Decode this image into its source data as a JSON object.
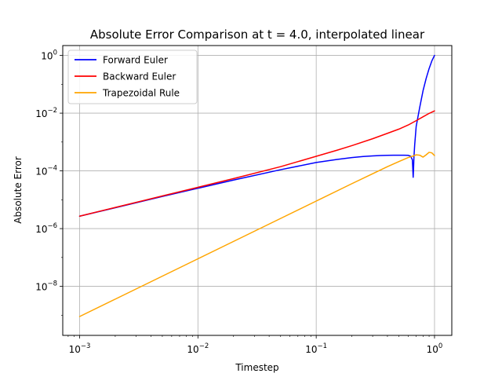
{
  "chart_data": {
    "type": "line",
    "title": "Absolute Error Comparison at t = 4.0, interpolated linear",
    "xlabel": "Timestep",
    "ylabel": "Absolute Error",
    "xscale": "log",
    "yscale": "log",
    "xlim": [
      0.00072,
      1.4
    ],
    "ylim": [
      2e-10,
      2.2
    ],
    "grid": true,
    "legend_position": "upper-left",
    "x_ticks": [
      {
        "base": "10",
        "exp": "−3",
        "value": 0.001
      },
      {
        "base": "10",
        "exp": "−2",
        "value": 0.01
      },
      {
        "base": "10",
        "exp": "−1",
        "value": 0.1
      },
      {
        "base": "10",
        "exp": "0",
        "value": 1
      }
    ],
    "y_ticks": [
      {
        "base": "10",
        "exp": "−8",
        "value": 1e-08
      },
      {
        "base": "10",
        "exp": "−6",
        "value": 1e-06
      },
      {
        "base": "10",
        "exp": "−4",
        "value": 0.0001
      },
      {
        "base": "10",
        "exp": "−2",
        "value": 0.01
      },
      {
        "base": "10",
        "exp": "0",
        "value": 1
      }
    ],
    "series": [
      {
        "name": "Forward Euler",
        "color": "#0000ff",
        "x": [
          0.001,
          0.002,
          0.005,
          0.01,
          0.02,
          0.05,
          0.1,
          0.15,
          0.2,
          0.25,
          0.3,
          0.35,
          0.4,
          0.45,
          0.5,
          0.55,
          0.6,
          0.63,
          0.65,
          0.66,
          0.665,
          0.67,
          0.68,
          0.7,
          0.75,
          0.8,
          0.85,
          0.9,
          0.95,
          1.0
        ],
        "values": [
          2.7e-06,
          5.3e-06,
          1.3e-05,
          2.5e-05,
          4.8e-05,
          0.00011,
          0.000195,
          0.00025,
          0.00029,
          0.000315,
          0.00033,
          0.00034,
          0.000345,
          0.00035,
          0.00035,
          0.00035,
          0.000345,
          0.00032,
          0.00024,
          6e-05,
          0.00012,
          0.0003,
          0.0008,
          0.0035,
          0.016,
          0.06,
          0.16,
          0.35,
          0.65,
          1.0
        ]
      },
      {
        "name": "Backward Euler",
        "color": "#ff0000",
        "x": [
          0.001,
          0.002,
          0.005,
          0.01,
          0.02,
          0.05,
          0.1,
          0.15,
          0.2,
          0.3,
          0.4,
          0.5,
          0.6,
          0.7,
          0.8,
          0.9,
          1.0
        ],
        "values": [
          2.7e-06,
          5.4e-06,
          1.35e-05,
          2.7e-05,
          5.4e-05,
          0.00014,
          0.00032,
          0.00052,
          0.00075,
          0.0013,
          0.002,
          0.0028,
          0.0039,
          0.0055,
          0.0075,
          0.0098,
          0.012
        ]
      },
      {
        "name": "Trapezoidal Rule",
        "color": "#ffa500",
        "x": [
          0.001,
          0.002,
          0.005,
          0.01,
          0.02,
          0.05,
          0.1,
          0.2,
          0.3,
          0.4,
          0.5,
          0.6,
          0.65,
          0.7,
          0.75,
          0.8,
          0.85,
          0.9,
          0.95,
          1.0
        ],
        "values": [
          9e-10,
          3.6e-09,
          2.25e-08,
          9e-08,
          3.6e-07,
          2.25e-06,
          9e-06,
          3.6e-05,
          8e-05,
          0.00014,
          0.00021,
          0.00029,
          0.00032,
          0.00036,
          0.00035,
          0.0003,
          0.00036,
          0.00044,
          0.00042,
          0.00034
        ]
      }
    ]
  }
}
